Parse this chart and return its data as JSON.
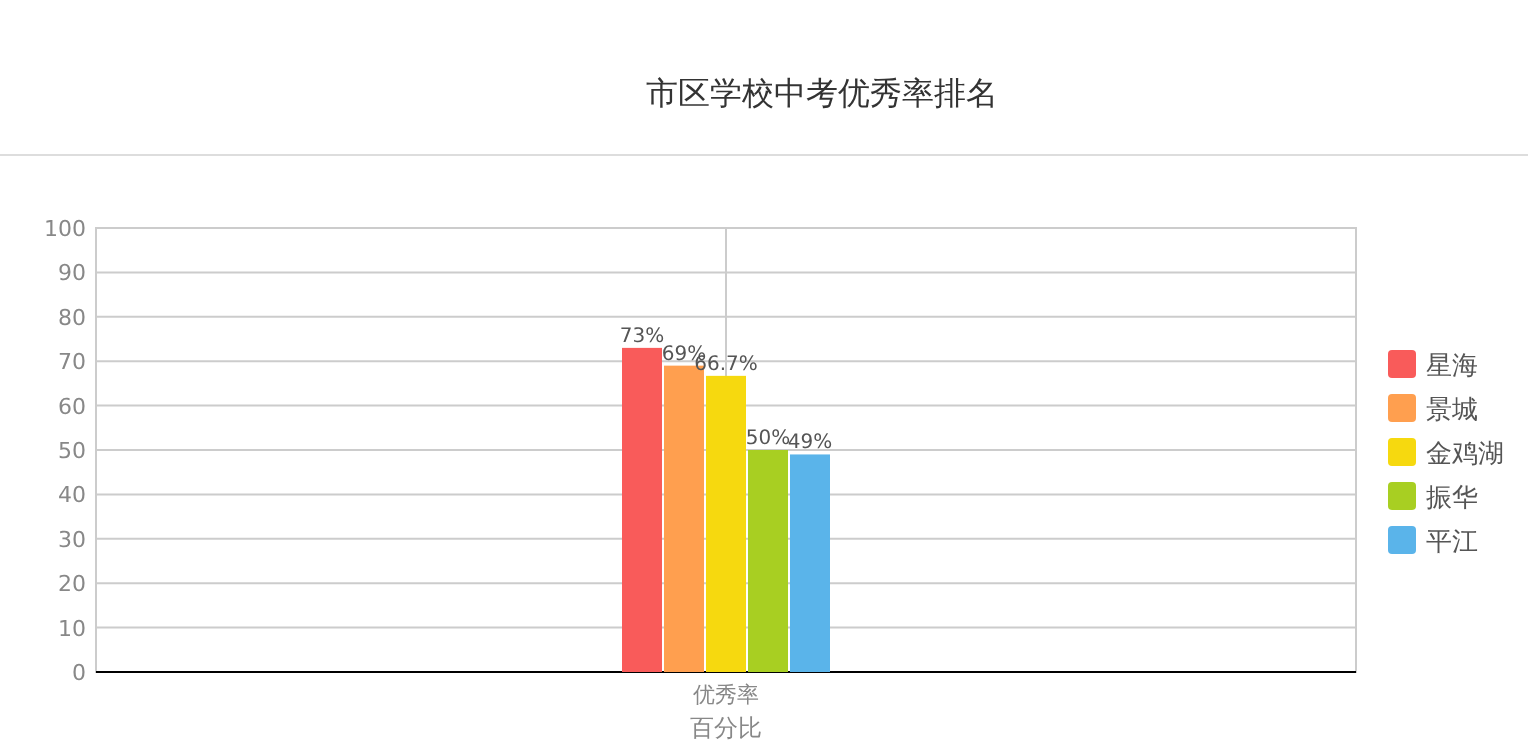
{
  "chart_data": {
    "type": "bar",
    "title": "市区学校中考优秀率排名",
    "xlabel": "百分比",
    "categories": [
      "优秀率"
    ],
    "series": [
      {
        "name": "星海",
        "color": "#f95b5a",
        "values": [
          73
        ],
        "value_labels": [
          "73%"
        ]
      },
      {
        "name": "景城",
        "color": "#ff9f4f",
        "values": [
          69
        ],
        "value_labels": [
          "69%"
        ]
      },
      {
        "name": "金鸡湖",
        "color": "#f6d90f",
        "values": [
          66.7
        ],
        "value_labels": [
          "66.7%"
        ]
      },
      {
        "name": "振华",
        "color": "#a8cf22",
        "values": [
          50
        ],
        "value_labels": [
          "50%"
        ]
      },
      {
        "name": "平江",
        "color": "#5ab4ea",
        "values": [
          49
        ],
        "value_labels": [
          "49%"
        ]
      }
    ],
    "ylim": [
      0,
      100
    ],
    "yticks": [
      0,
      10,
      20,
      30,
      40,
      50,
      60,
      70,
      80,
      90,
      100
    ],
    "grid": true,
    "legend": "right"
  }
}
